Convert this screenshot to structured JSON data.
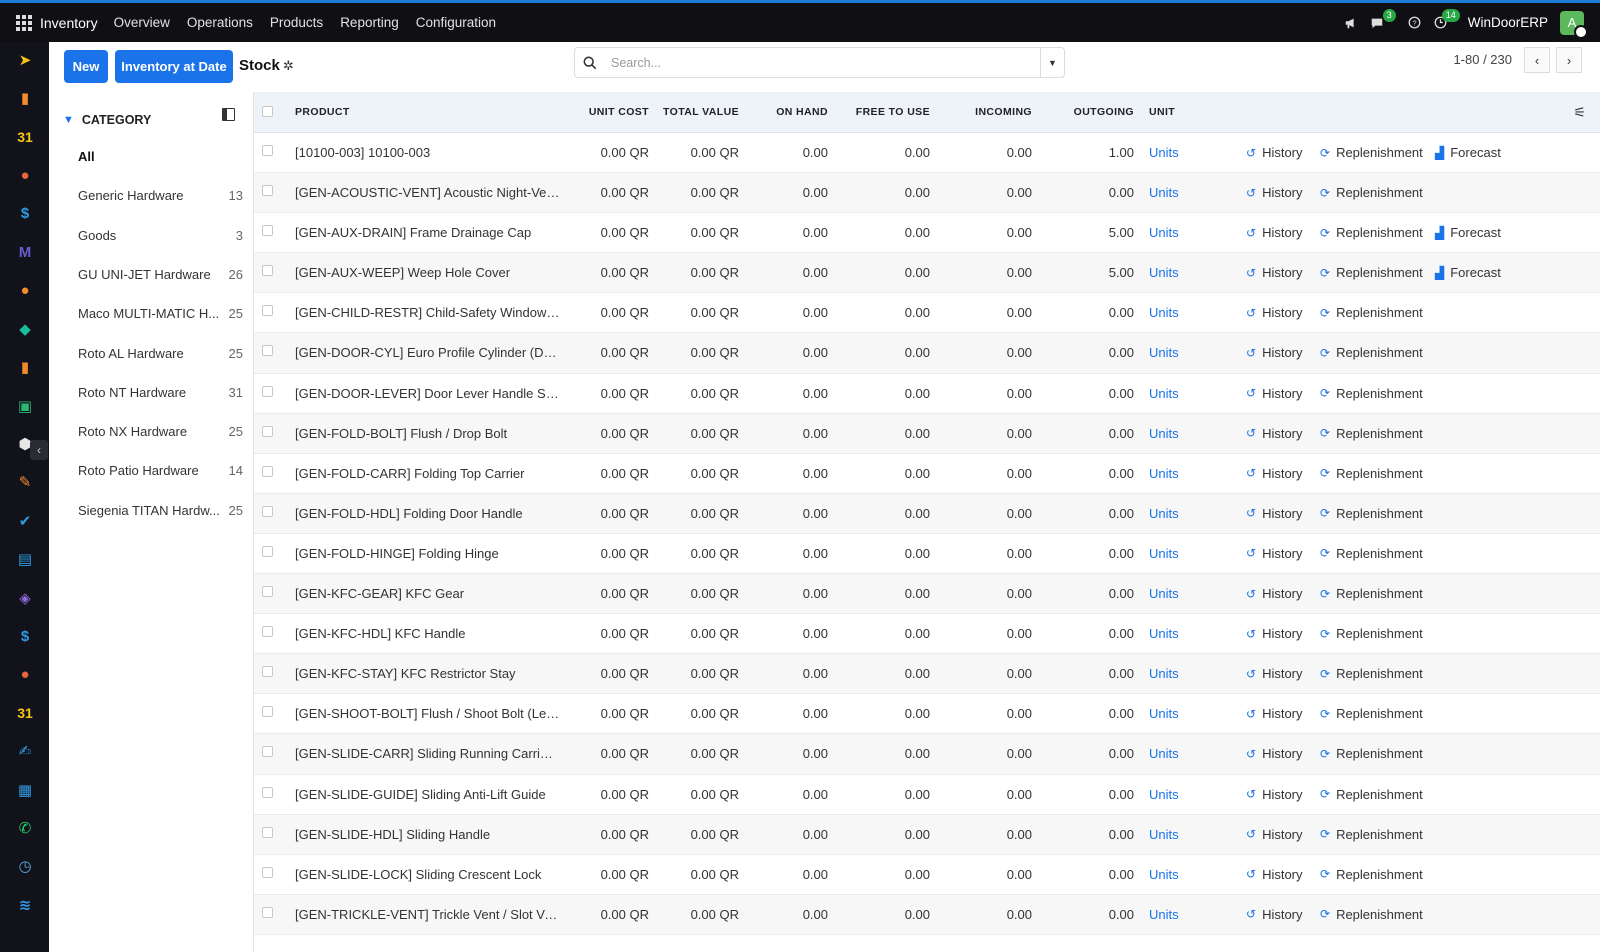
{
  "topbar": {
    "app_name": "Inventory",
    "menus": [
      "Overview",
      "Operations",
      "Products",
      "Reporting",
      "Configuration"
    ],
    "messages_badge": "3",
    "activities_badge": "14",
    "company": "WinDoorERP",
    "avatar_letter": "A"
  },
  "control": {
    "new_label": "New",
    "inventory_at_date_label": "Inventory at Date",
    "breadcrumb": "Stock",
    "search_placeholder": "Search...",
    "pager": "1-80 / 230"
  },
  "category_panel": {
    "title": "CATEGORY",
    "items": [
      {
        "label": "All",
        "count": ""
      },
      {
        "label": "Generic Hardware",
        "count": "13"
      },
      {
        "label": "Goods",
        "count": "3"
      },
      {
        "label": "GU UNI-JET Hardware",
        "count": "26"
      },
      {
        "label": "Maco MULTI-MATIC H...",
        "count": "25"
      },
      {
        "label": "Roto AL Hardware",
        "count": "25"
      },
      {
        "label": "Roto NT Hardware",
        "count": "31"
      },
      {
        "label": "Roto NX Hardware",
        "count": "25"
      },
      {
        "label": "Roto Patio Hardware",
        "count": "14"
      },
      {
        "label": "Siegenia TITAN Hardw...",
        "count": "25"
      }
    ]
  },
  "table": {
    "headers": {
      "product": "PRODUCT",
      "unit_cost": "UNIT COST",
      "total_value": "TOTAL VALUE",
      "on_hand": "ON HAND",
      "free_to_use": "FREE TO USE",
      "incoming": "INCOMING",
      "outgoing": "OUTGOING",
      "unit": "UNIT"
    },
    "action_labels": {
      "history": "History",
      "replenishment": "Replenishment",
      "forecast": "Forecast"
    },
    "rows": [
      {
        "product": "[10100-003] 10100-003",
        "unit_cost": "0.00 QR",
        "total_value": "0.00 QR",
        "on_hand": "0.00",
        "free": "0.00",
        "incoming": "0.00",
        "outgoing": "1.00",
        "unit": "Units",
        "forecast": true
      },
      {
        "product": "[GEN-ACOUSTIC-VENT] Acoustic Night-Ven...",
        "unit_cost": "0.00 QR",
        "total_value": "0.00 QR",
        "on_hand": "0.00",
        "free": "0.00",
        "incoming": "0.00",
        "outgoing": "0.00",
        "unit": "Units",
        "forecast": false
      },
      {
        "product": "[GEN-AUX-DRAIN] Frame Drainage Cap",
        "unit_cost": "0.00 QR",
        "total_value": "0.00 QR",
        "on_hand": "0.00",
        "free": "0.00",
        "incoming": "0.00",
        "outgoing": "5.00",
        "unit": "Units",
        "forecast": true
      },
      {
        "product": "[GEN-AUX-WEEP] Weep Hole Cover",
        "unit_cost": "0.00 QR",
        "total_value": "0.00 QR",
        "on_hand": "0.00",
        "free": "0.00",
        "incoming": "0.00",
        "outgoing": "5.00",
        "unit": "Units",
        "forecast": true
      },
      {
        "product": "[GEN-CHILD-RESTR] Child-Safety Window R...",
        "unit_cost": "0.00 QR",
        "total_value": "0.00 QR",
        "on_hand": "0.00",
        "free": "0.00",
        "incoming": "0.00",
        "outgoing": "0.00",
        "unit": "Units",
        "forecast": false
      },
      {
        "product": "[GEN-DOOR-CYL] Euro Profile Cylinder (DIN ...",
        "unit_cost": "0.00 QR",
        "total_value": "0.00 QR",
        "on_hand": "0.00",
        "free": "0.00",
        "incoming": "0.00",
        "outgoing": "0.00",
        "unit": "Units",
        "forecast": false
      },
      {
        "product": "[GEN-DOOR-LEVER] Door Lever Handle Set (...",
        "unit_cost": "0.00 QR",
        "total_value": "0.00 QR",
        "on_hand": "0.00",
        "free": "0.00",
        "incoming": "0.00",
        "outgoing": "0.00",
        "unit": "Units",
        "forecast": false
      },
      {
        "product": "[GEN-FOLD-BOLT] Flush / Drop Bolt",
        "unit_cost": "0.00 QR",
        "total_value": "0.00 QR",
        "on_hand": "0.00",
        "free": "0.00",
        "incoming": "0.00",
        "outgoing": "0.00",
        "unit": "Units",
        "forecast": false
      },
      {
        "product": "[GEN-FOLD-CARR] Folding Top Carrier",
        "unit_cost": "0.00 QR",
        "total_value": "0.00 QR",
        "on_hand": "0.00",
        "free": "0.00",
        "incoming": "0.00",
        "outgoing": "0.00",
        "unit": "Units",
        "forecast": false
      },
      {
        "product": "[GEN-FOLD-HDL] Folding Door Handle",
        "unit_cost": "0.00 QR",
        "total_value": "0.00 QR",
        "on_hand": "0.00",
        "free": "0.00",
        "incoming": "0.00",
        "outgoing": "0.00",
        "unit": "Units",
        "forecast": false
      },
      {
        "product": "[GEN-FOLD-HINGE] Folding Hinge",
        "unit_cost": "0.00 QR",
        "total_value": "0.00 QR",
        "on_hand": "0.00",
        "free": "0.00",
        "incoming": "0.00",
        "outgoing": "0.00",
        "unit": "Units",
        "forecast": false
      },
      {
        "product": "[GEN-KFC-GEAR] KFC Gear",
        "unit_cost": "0.00 QR",
        "total_value": "0.00 QR",
        "on_hand": "0.00",
        "free": "0.00",
        "incoming": "0.00",
        "outgoing": "0.00",
        "unit": "Units",
        "forecast": false
      },
      {
        "product": "[GEN-KFC-HDL] KFC Handle",
        "unit_cost": "0.00 QR",
        "total_value": "0.00 QR",
        "on_hand": "0.00",
        "free": "0.00",
        "incoming": "0.00",
        "outgoing": "0.00",
        "unit": "Units",
        "forecast": false
      },
      {
        "product": "[GEN-KFC-STAY] KFC Restrictor Stay",
        "unit_cost": "0.00 QR",
        "total_value": "0.00 QR",
        "on_hand": "0.00",
        "free": "0.00",
        "incoming": "0.00",
        "outgoing": "0.00",
        "unit": "Units",
        "forecast": false
      },
      {
        "product": "[GEN-SHOOT-BOLT] Flush / Shoot Bolt (Leve...",
        "unit_cost": "0.00 QR",
        "total_value": "0.00 QR",
        "on_hand": "0.00",
        "free": "0.00",
        "incoming": "0.00",
        "outgoing": "0.00",
        "unit": "Units",
        "forecast": false
      },
      {
        "product": "[GEN-SLIDE-CARR] Sliding Running Carriage",
        "unit_cost": "0.00 QR",
        "total_value": "0.00 QR",
        "on_hand": "0.00",
        "free": "0.00",
        "incoming": "0.00",
        "outgoing": "0.00",
        "unit": "Units",
        "forecast": false
      },
      {
        "product": "[GEN-SLIDE-GUIDE] Sliding Anti-Lift Guide",
        "unit_cost": "0.00 QR",
        "total_value": "0.00 QR",
        "on_hand": "0.00",
        "free": "0.00",
        "incoming": "0.00",
        "outgoing": "0.00",
        "unit": "Units",
        "forecast": false
      },
      {
        "product": "[GEN-SLIDE-HDL] Sliding Handle",
        "unit_cost": "0.00 QR",
        "total_value": "0.00 QR",
        "on_hand": "0.00",
        "free": "0.00",
        "incoming": "0.00",
        "outgoing": "0.00",
        "unit": "Units",
        "forecast": false
      },
      {
        "product": "[GEN-SLIDE-LOCK] Sliding Crescent Lock",
        "unit_cost": "0.00 QR",
        "total_value": "0.00 QR",
        "on_hand": "0.00",
        "free": "0.00",
        "incoming": "0.00",
        "outgoing": "0.00",
        "unit": "Units",
        "forecast": false
      },
      {
        "product": "[GEN-TRICKLE-VENT] Trickle Vent / Slot Vent...",
        "unit_cost": "0.00 QR",
        "total_value": "0.00 QR",
        "on_hand": "0.00",
        "free": "0.00",
        "incoming": "0.00",
        "outgoing": "0.00",
        "unit": "Units",
        "forecast": false
      }
    ]
  },
  "rail_icons": [
    {
      "name": "discuss-icon",
      "color": "#f5c518",
      "glyph": "➤"
    },
    {
      "name": "dashboard-icon",
      "color": "#f08c2b",
      "glyph": "▮"
    },
    {
      "name": "calendar-icon",
      "color": "#f5c518",
      "glyph": "31"
    },
    {
      "name": "contacts-icon",
      "color": "#e8663d",
      "glyph": "●"
    },
    {
      "name": "sales-icon",
      "color": "#2e9be5",
      "glyph": "$"
    },
    {
      "name": "mail-icon",
      "color": "#6a5acd",
      "glyph": "M"
    },
    {
      "name": "chat-icon",
      "color": "#f08c2b",
      "glyph": "●"
    },
    {
      "name": "crm-icon",
      "color": "#1abc9c",
      "glyph": "◆"
    },
    {
      "name": "reporting-icon",
      "color": "#f08c2b",
      "glyph": "▮"
    },
    {
      "name": "employees-icon",
      "color": "#2bb673",
      "glyph": "▣"
    },
    {
      "name": "inventory-icon",
      "color": "#e6e6e6",
      "glyph": "⬢"
    },
    {
      "name": "edit-icon",
      "color": "#f08c2b",
      "glyph": "✎"
    },
    {
      "name": "project-icon",
      "color": "#2e9be5",
      "glyph": "✔"
    },
    {
      "name": "helpdesk-icon",
      "color": "#2e9be5",
      "glyph": "▤"
    },
    {
      "name": "manufacturing-icon",
      "color": "#8e6bd8",
      "glyph": "◈"
    },
    {
      "name": "invoicing-icon",
      "color": "#2e9be5",
      "glyph": "$"
    },
    {
      "name": "team-icon",
      "color": "#e8663d",
      "glyph": "●"
    },
    {
      "name": "calendar2-icon",
      "color": "#f5c518",
      "glyph": "31"
    },
    {
      "name": "sign-icon",
      "color": "#2e9be5",
      "glyph": "✍"
    },
    {
      "name": "apps-icon",
      "color": "#2e9be5",
      "glyph": "▦"
    },
    {
      "name": "whatsapp-icon",
      "color": "#25d366",
      "glyph": "✆"
    },
    {
      "name": "planning-icon",
      "color": "#5aa9e6",
      "glyph": "◷"
    },
    {
      "name": "website-icon",
      "color": "#2e9be5",
      "glyph": "≋"
    }
  ]
}
